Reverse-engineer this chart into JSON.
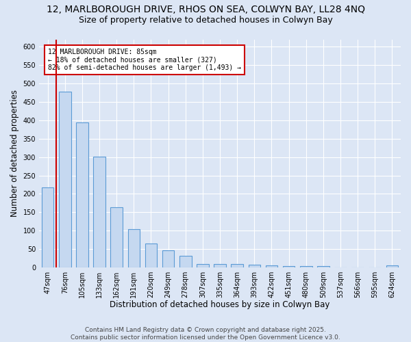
{
  "title_line1": "12, MARLBOROUGH DRIVE, RHOS ON SEA, COLWYN BAY, LL28 4NQ",
  "title_line2": "Size of property relative to detached houses in Colwyn Bay",
  "xlabel": "Distribution of detached houses by size in Colwyn Bay",
  "ylabel": "Number of detached properties",
  "categories": [
    "47sqm",
    "76sqm",
    "105sqm",
    "133sqm",
    "162sqm",
    "191sqm",
    "220sqm",
    "249sqm",
    "278sqm",
    "307sqm",
    "335sqm",
    "364sqm",
    "393sqm",
    "422sqm",
    "451sqm",
    "480sqm",
    "509sqm",
    "537sqm",
    "566sqm",
    "595sqm",
    "624sqm"
  ],
  "values": [
    218,
    478,
    395,
    302,
    163,
    105,
    65,
    47,
    31,
    10,
    10,
    10,
    8,
    5,
    4,
    4,
    3,
    0,
    0,
    0,
    5
  ],
  "bar_color": "#c5d8f0",
  "bar_edge_color": "#5b9bd5",
  "background_color": "#dce6f5",
  "grid_color": "#ffffff",
  "vline_x": 0.5,
  "vline_color": "#cc0000",
  "annotation_text": "12 MARLBOROUGH DRIVE: 85sqm\n← 18% of detached houses are smaller (327)\n82% of semi-detached houses are larger (1,493) →",
  "annotation_box_color": "#cc0000",
  "ylim": [
    0,
    620
  ],
  "yticks": [
    0,
    50,
    100,
    150,
    200,
    250,
    300,
    350,
    400,
    450,
    500,
    550,
    600
  ],
  "footer_text": "Contains HM Land Registry data © Crown copyright and database right 2025.\nContains public sector information licensed under the Open Government Licence v3.0.",
  "title_fontsize": 10,
  "subtitle_fontsize": 9,
  "label_fontsize": 8.5,
  "tick_fontsize": 7,
  "footer_fontsize": 6.5,
  "bar_width": 0.7
}
